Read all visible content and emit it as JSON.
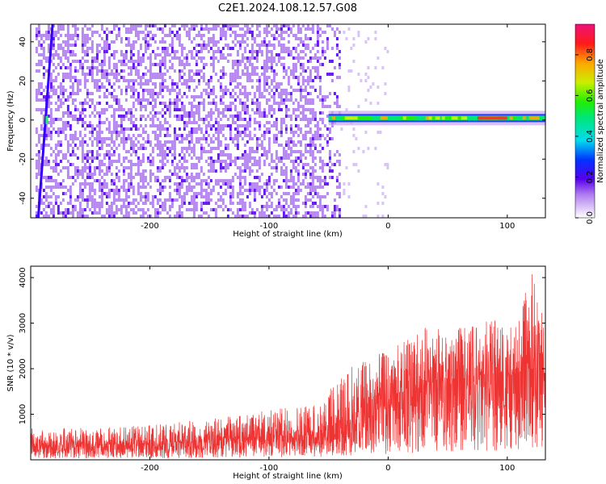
{
  "title": "C2E1.2024.108.12.57.G08",
  "chart_data": [
    {
      "type": "heatmap",
      "xlabel": "Height of straight line (km)",
      "ylabel": "Frequency (Hz)",
      "xlim": [
        -300,
        132
      ],
      "ylim": [
        -50,
        49
      ],
      "xticks": [
        -200,
        -100,
        0,
        100
      ],
      "yticks": [
        -40,
        -20,
        0,
        20,
        40
      ],
      "colorbar": {
        "label": "Normalized spectral amplitude",
        "range": [
          0,
          0.95
        ],
        "ticks": [
          0.0,
          0.2,
          0.4,
          0.6,
          0.8
        ]
      },
      "features": [
        {
          "kind": "broadband-noise",
          "x_range": [
            -296,
            -40
          ],
          "amplitude": "0.1-0.3"
        },
        {
          "kind": "narrow-line",
          "x_range": [
            -295,
            -285
          ],
          "frequency": "sloped, -50 to 49"
        },
        {
          "kind": "narrow-band",
          "x_range": [
            -50,
            132
          ],
          "frequency": 1,
          "amplitude": "up to 0.95"
        }
      ]
    },
    {
      "type": "line",
      "xlabel": "Height of straight line (km)",
      "ylabel": "SNR (10 * v/v)",
      "xlim": [
        -300,
        132
      ],
      "ylim": [
        0,
        4250
      ],
      "xticks": [
        -200,
        -100,
        0,
        100
      ],
      "yticks": [
        1000,
        2000,
        3000,
        4000
      ],
      "series": [
        {
          "color": "#ee3333",
          "x": [
            -300,
            -250,
            -200,
            -150,
            -100,
            -60,
            -30,
            0,
            30,
            60,
            90,
            110,
            120,
            132
          ],
          "y_mean": [
            300,
            320,
            350,
            430,
            500,
            580,
            900,
            1200,
            1650,
            1800,
            1900,
            1850,
            2000,
            1900
          ],
          "y_max": [
            700,
            700,
            760,
            900,
            1100,
            1250,
            2100,
            2400,
            2900,
            2900,
            3100,
            3100,
            4200,
            3000
          ]
        }
      ]
    }
  ],
  "colors": {
    "line": "#ee3333",
    "axis": "#000000",
    "background": "#ffffff"
  }
}
